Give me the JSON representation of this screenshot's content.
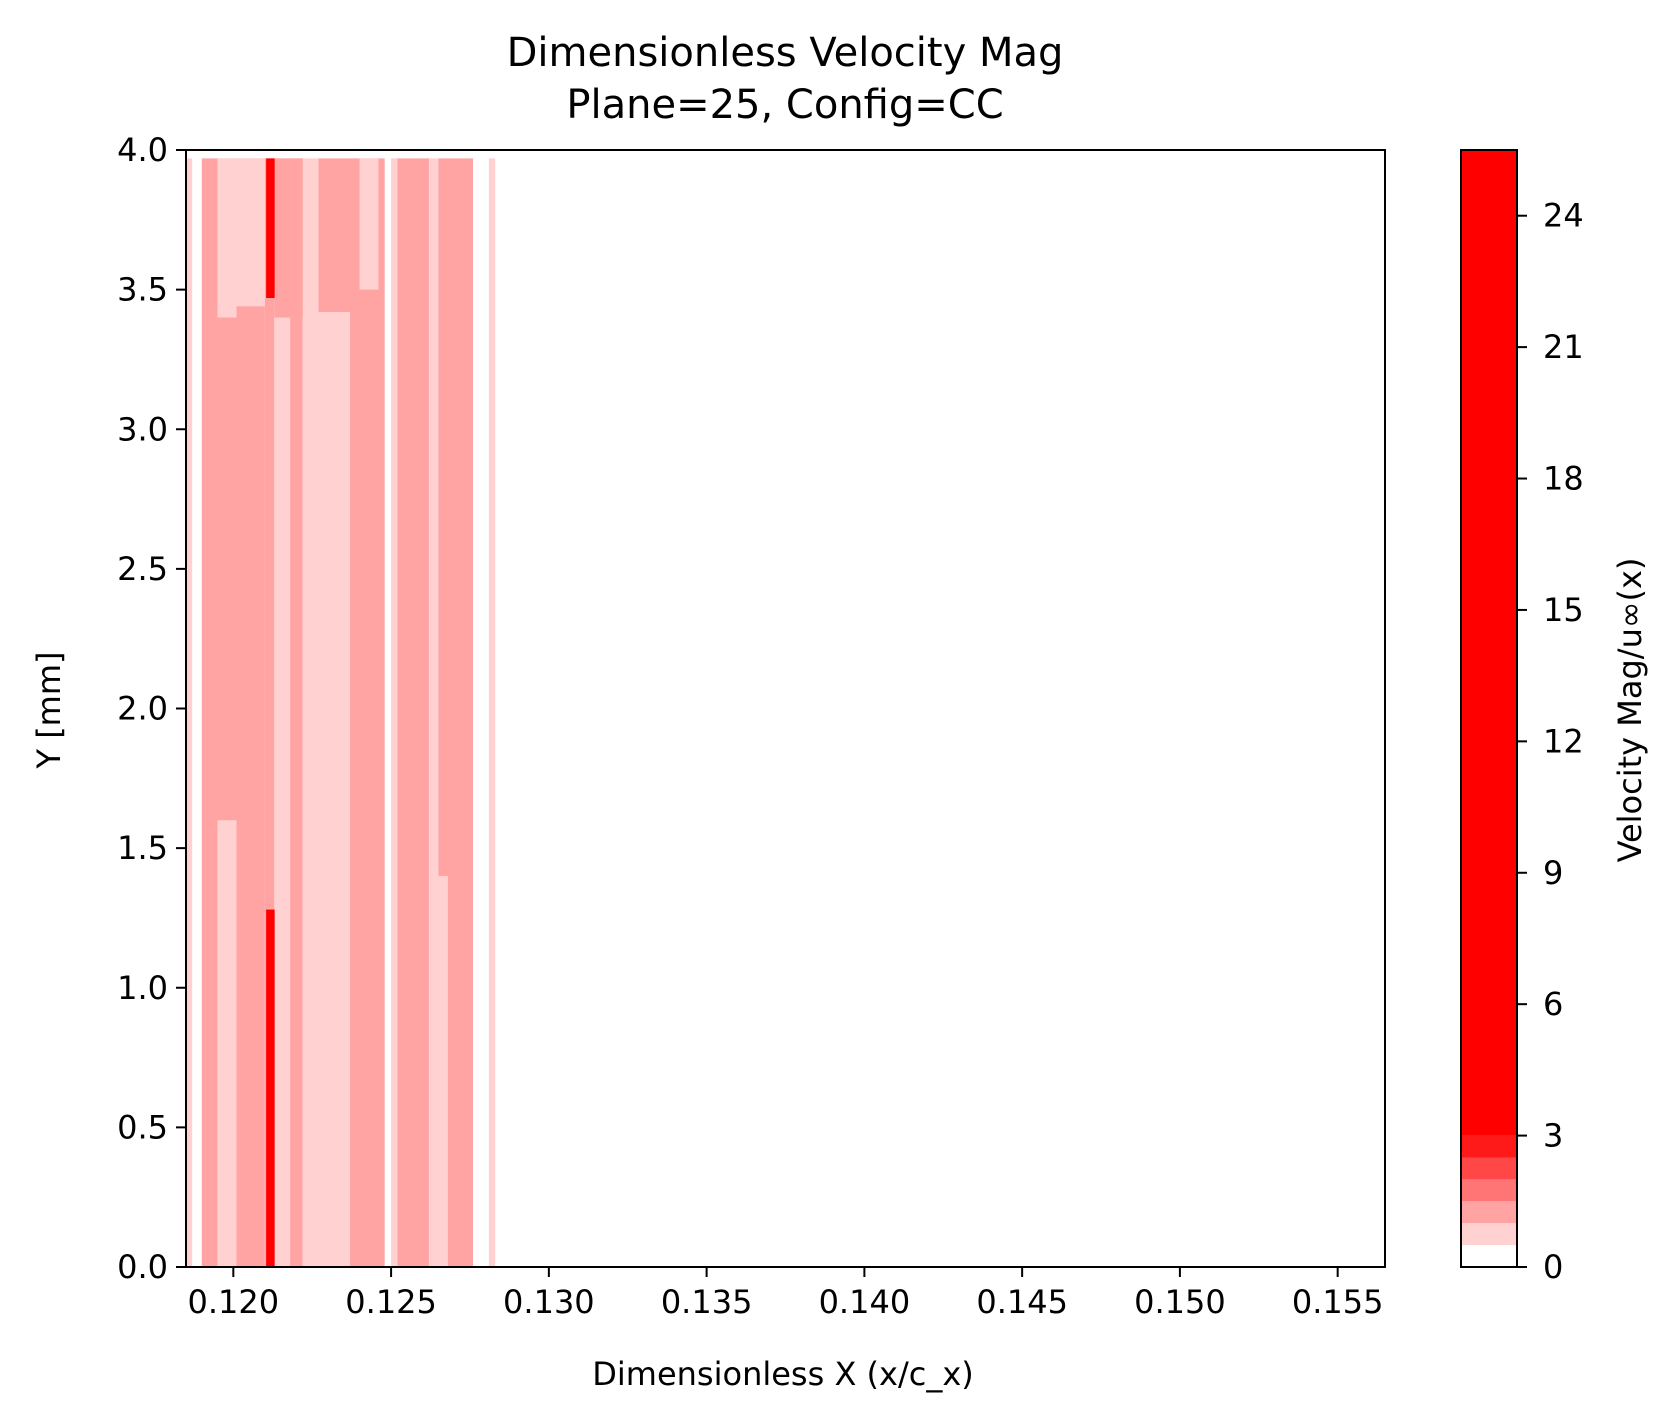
{
  "chart_data": {
    "type": "heatmap",
    "title": "Dimensionless Velocity Mag",
    "subtitle": "Plane=25, Config=CC",
    "xlabel": "Dimensionless X (x/c_x)",
    "ylabel": "Y [mm]",
    "xlim": [
      0.1185,
      0.1565
    ],
    "ylim": [
      0.0,
      4.0
    ],
    "x_ticks": [
      0.12,
      0.125,
      0.13,
      0.135,
      0.14,
      0.145,
      0.15,
      0.155
    ],
    "x_tick_labels": [
      "0.120",
      "0.125",
      "0.130",
      "0.135",
      "0.140",
      "0.145",
      "0.150",
      "0.155"
    ],
    "y_ticks": [
      0.0,
      0.5,
      1.0,
      1.5,
      2.0,
      2.5,
      3.0,
      3.5,
      4.0
    ],
    "y_tick_labels": [
      "0.0",
      "0.5",
      "1.0",
      "1.5",
      "2.0",
      "2.5",
      "3.0",
      "3.5",
      "4.0"
    ],
    "data_extent_x": [
      0.1185,
      0.1283
    ],
    "data_extent_y": [
      0.0,
      3.97
    ],
    "colormap_levels": [
      {
        "from": 0.0,
        "to": 0.5,
        "color": "#ffffff"
      },
      {
        "from": 0.5,
        "to": 1.0,
        "color": "#ffd1d1"
      },
      {
        "from": 1.0,
        "to": 1.5,
        "color": "#ffa3a3"
      },
      {
        "from": 1.5,
        "to": 2.0,
        "color": "#ff7575"
      },
      {
        "from": 2.0,
        "to": 2.5,
        "color": "#ff4747"
      },
      {
        "from": 2.5,
        "to": 3.0,
        "color": "#ff1a1a"
      },
      {
        "from": 3.0,
        "to": 25.5,
        "color": "#ff0000"
      }
    ],
    "field_bands": [
      {
        "x0": 0.1185,
        "x1": 0.1187,
        "y0": 0.0,
        "y1": 3.97,
        "level": 1
      },
      {
        "x0": 0.1187,
        "x1": 0.119,
        "y0": 0.0,
        "y1": 3.97,
        "level": 0
      },
      {
        "x0": 0.119,
        "x1": 0.1195,
        "y0": 0.0,
        "y1": 3.97,
        "level": 2
      },
      {
        "x0": 0.1195,
        "x1": 0.1201,
        "y0": 0.0,
        "y1": 3.97,
        "level": 1
      },
      {
        "x0": 0.1201,
        "x1": 0.121,
        "y0": 0.0,
        "y1": 3.97,
        "level": 2
      },
      {
        "x0": 0.121,
        "x1": 0.1213,
        "y0": 0.0,
        "y1": 3.97,
        "level": 2
      },
      {
        "x0": 0.1213,
        "x1": 0.1218,
        "y0": 0.0,
        "y1": 3.97,
        "level": 1
      },
      {
        "x0": 0.1218,
        "x1": 0.1222,
        "y0": 0.0,
        "y1": 3.97,
        "level": 2
      },
      {
        "x0": 0.1222,
        "x1": 0.1227,
        "y0": 0.0,
        "y1": 3.97,
        "level": 1
      },
      {
        "x0": 0.1227,
        "x1": 0.1248,
        "y0": 0.0,
        "y1": 3.97,
        "level": 2
      },
      {
        "x0": 0.1248,
        "x1": 0.125,
        "y0": 0.0,
        "y1": 3.97,
        "level": 0
      },
      {
        "x0": 0.125,
        "x1": 0.1252,
        "y0": 0.0,
        "y1": 3.97,
        "level": 1
      },
      {
        "x0": 0.1252,
        "x1": 0.1262,
        "y0": 0.0,
        "y1": 3.97,
        "level": 2
      },
      {
        "x0": 0.1262,
        "x1": 0.1265,
        "y0": 0.0,
        "y1": 3.97,
        "level": 1
      },
      {
        "x0": 0.1265,
        "x1": 0.1276,
        "y0": 0.0,
        "y1": 3.97,
        "level": 2
      },
      {
        "x0": 0.1276,
        "x1": 0.1281,
        "y0": 0.0,
        "y1": 3.97,
        "level": 0
      },
      {
        "x0": 0.1281,
        "x1": 0.1283,
        "y0": 0.0,
        "y1": 3.97,
        "level": 1
      },
      {
        "x0": 0.1195,
        "x1": 0.121,
        "y0": 3.44,
        "y1": 3.97,
        "level": 1
      },
      {
        "x0": 0.1213,
        "x1": 0.1222,
        "y0": 3.4,
        "y1": 3.97,
        "level": 2
      },
      {
        "x0": 0.1227,
        "x1": 0.1237,
        "y0": 0.0,
        "y1": 3.42,
        "level": 1
      },
      {
        "x0": 0.124,
        "x1": 0.1246,
        "y0": 3.5,
        "y1": 3.97,
        "level": 1
      },
      {
        "x0": 0.1195,
        "x1": 0.1201,
        "y0": 1.6,
        "y1": 3.4,
        "level": 2
      },
      {
        "x0": 0.1265,
        "x1": 0.1268,
        "y0": 0.0,
        "y1": 1.4,
        "level": 1
      }
    ],
    "peak_streaks": [
      {
        "x0": 0.12104,
        "x1": 0.12131,
        "y0": 3.47,
        "y1": 3.97,
        "level": 6
      },
      {
        "x0": 0.12104,
        "x1": 0.12131,
        "y0": 0.0,
        "y1": 1.28,
        "level": 6
      }
    ],
    "colorbar": {
      "label": "Velocity Mag/u∞(x)",
      "range": [
        0,
        25.5
      ],
      "ticks": [
        0,
        3,
        6,
        9,
        12,
        15,
        18,
        21,
        24
      ],
      "tick_labels": [
        "0",
        "3",
        "6",
        "9",
        "12",
        "15",
        "18",
        "21",
        "24"
      ]
    }
  }
}
